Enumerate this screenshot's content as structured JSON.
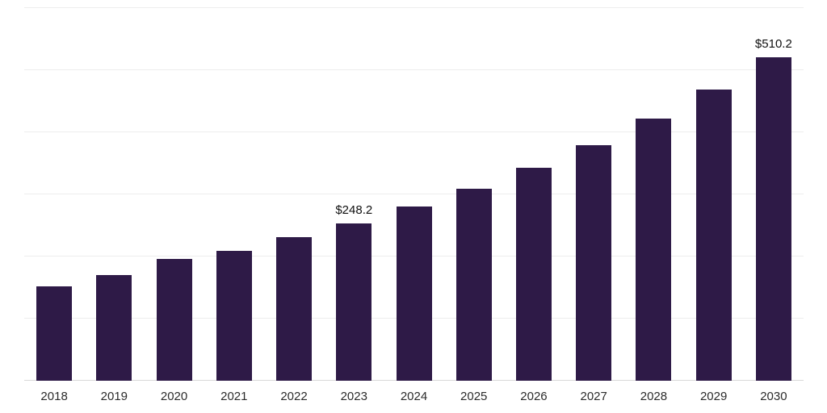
{
  "chart_data": {
    "type": "bar",
    "title": "",
    "xlabel": "",
    "ylabel": "",
    "categories": [
      "2018",
      "2019",
      "2020",
      "2021",
      "2022",
      "2023",
      "2024",
      "2025",
      "2026",
      "2027",
      "2028",
      "2029",
      "2030"
    ],
    "values": [
      148.9,
      166.8,
      192.2,
      204.9,
      226.6,
      248.2,
      275.0,
      303.0,
      336.1,
      371.7,
      413.7,
      459.5,
      510.2
    ],
    "data_labels": [
      {
        "category": "2023",
        "text": "$248.2"
      },
      {
        "category": "2030",
        "text": "$510.2"
      }
    ],
    "ylim": [
      0,
      588
    ],
    "grid": true,
    "gridline_count": 7,
    "legend_position": "none",
    "bar_color": "#2E1A47",
    "gridline_color": "#ededed",
    "baseline_color": "#d9d9d9",
    "value_label_color": "#101010",
    "axis_tick_label_color": "#2b2b2b"
  }
}
